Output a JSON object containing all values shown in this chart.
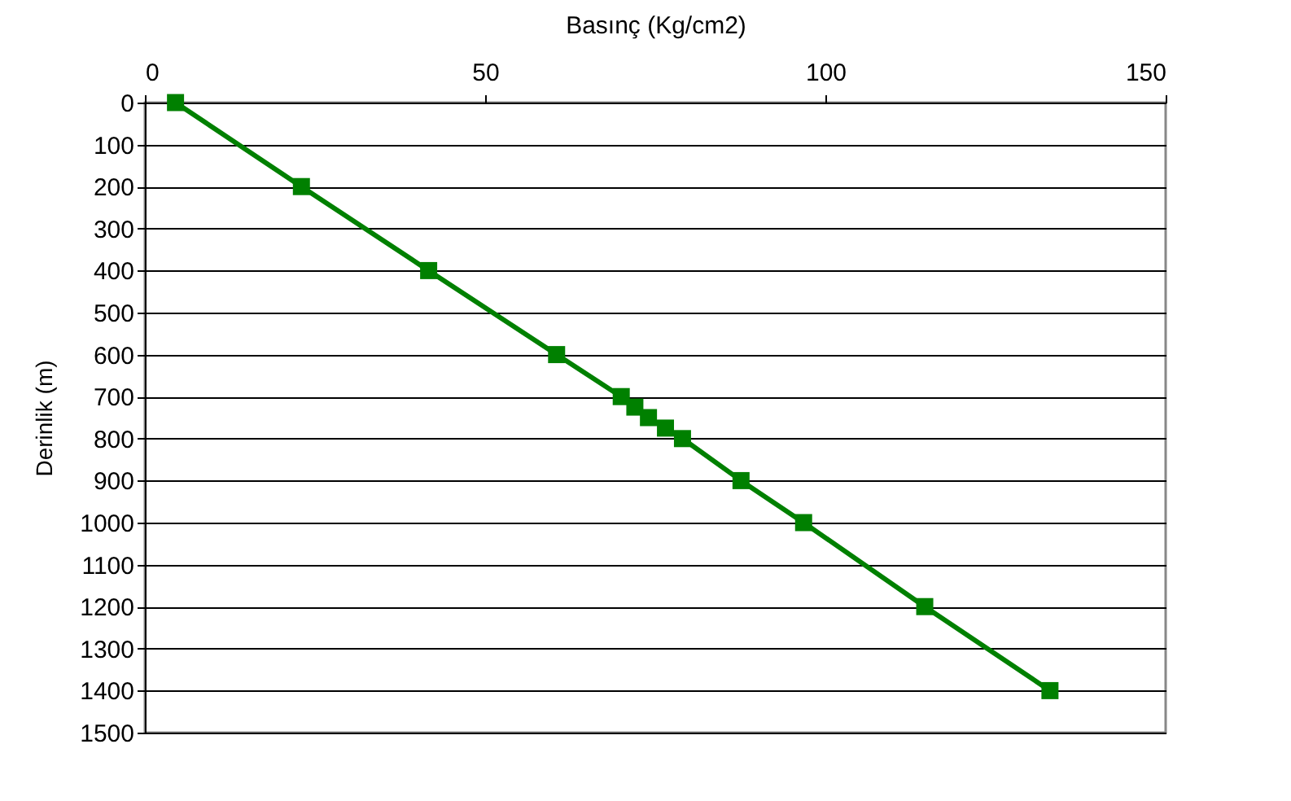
{
  "chart_data": {
    "type": "line",
    "xlabel": "Basınç (Kg/cm2)",
    "ylabel": "Derinlik (m)",
    "series": [
      {
        "color": "#008000",
        "x": [
          4.5,
          23,
          41.7,
          60.5,
          70,
          72,
          74,
          76.5,
          79,
          87.6,
          96.8,
          114.6,
          133
        ],
        "values": [
          0,
          200,
          400,
          600,
          700,
          725,
          750,
          775,
          800,
          900,
          1000,
          1200,
          1400
        ]
      }
    ],
    "xlim": [
      0,
      150
    ],
    "xticks": [
      0,
      50,
      100,
      150
    ],
    "ylim": [
      1500,
      0
    ],
    "yticks": [
      0,
      100,
      200,
      300,
      400,
      500,
      600,
      700,
      800,
      900,
      1000,
      1100,
      1200,
      1300,
      1400,
      1500
    ],
    "grid": "y",
    "marker": "square",
    "line_style": "solid"
  }
}
